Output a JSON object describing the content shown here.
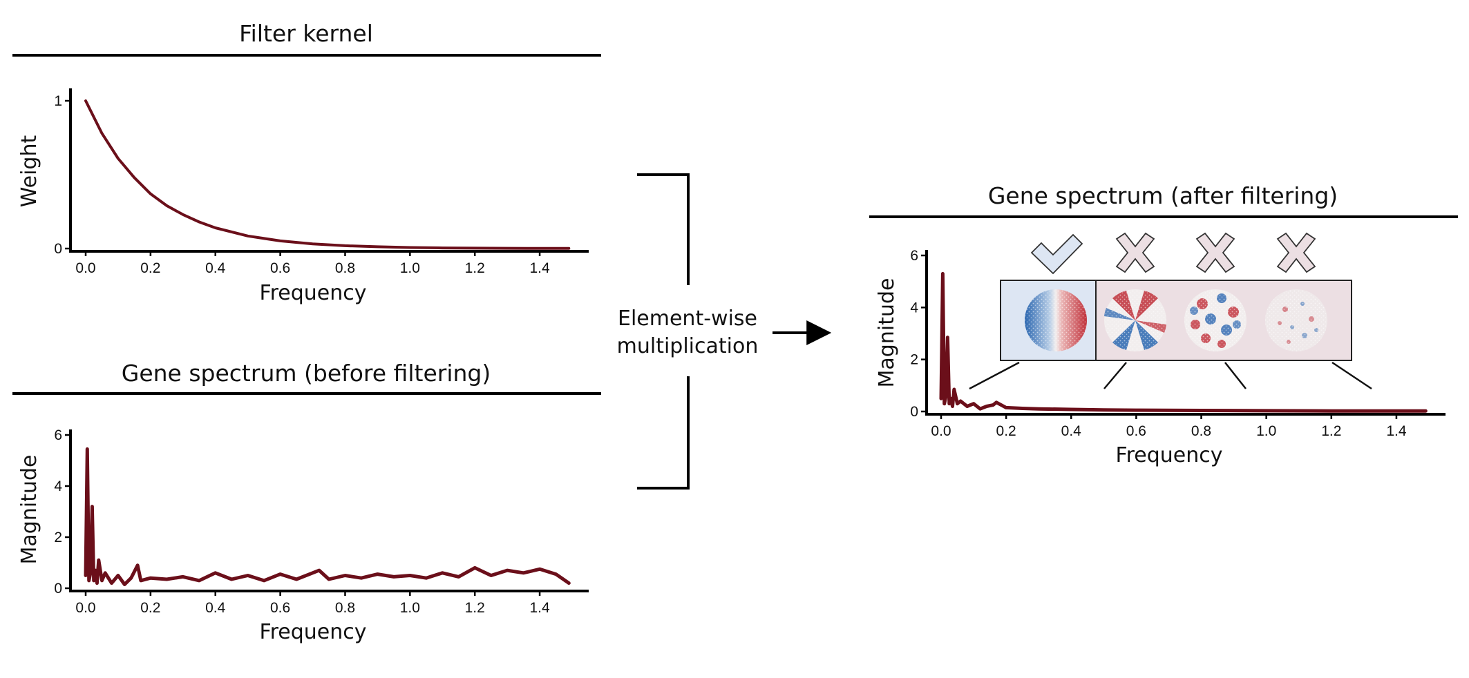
{
  "colors": {
    "line": "#6b0f1a",
    "axis": "#000000",
    "selected_fill": "#dde6f3",
    "rejected_fill": "#ecdfe3",
    "red": "#c0303a",
    "blue": "#2c67b0"
  },
  "chart_data": [
    {
      "type": "line",
      "title": "Filter kernel",
      "xlabel": "Frequency",
      "ylabel": "Weight",
      "xlim": [
        0,
        1.5
      ],
      "ylim": [
        0,
        1
      ],
      "xticks": [
        "0.0",
        "0.2",
        "0.4",
        "0.6",
        "0.8",
        "1.0",
        "1.2",
        "1.4"
      ],
      "yticks": [
        "0",
        "1"
      ],
      "series": [
        {
          "x": [
            0,
            0.05,
            0.1,
            0.15,
            0.2,
            0.25,
            0.3,
            0.35,
            0.4,
            0.5,
            0.6,
            0.7,
            0.8,
            0.9,
            1.0,
            1.1,
            1.2,
            1.3,
            1.4,
            1.49
          ],
          "values": [
            1.0,
            0.78,
            0.61,
            0.48,
            0.37,
            0.29,
            0.23,
            0.18,
            0.14,
            0.085,
            0.052,
            0.032,
            0.019,
            0.012,
            0.007,
            0.004,
            0.003,
            0.002,
            0.001,
            0.001
          ]
        }
      ]
    },
    {
      "type": "line",
      "title": "Gene spectrum (before filtering)",
      "xlabel": "Frequency",
      "ylabel": "Magnitude",
      "xlim": [
        0,
        1.5
      ],
      "ylim": [
        0,
        6
      ],
      "xticks": [
        "0.0",
        "0.2",
        "0.4",
        "0.6",
        "0.8",
        "1.0",
        "1.2",
        "1.4"
      ],
      "yticks": [
        "0",
        "2",
        "4",
        "6"
      ],
      "series": [
        {
          "x": [
            0.0,
            0.005,
            0.01,
            0.015,
            0.02,
            0.025,
            0.03,
            0.035,
            0.04,
            0.05,
            0.06,
            0.08,
            0.1,
            0.12,
            0.14,
            0.16,
            0.17,
            0.2,
            0.25,
            0.3,
            0.35,
            0.4,
            0.45,
            0.5,
            0.55,
            0.6,
            0.65,
            0.7,
            0.72,
            0.75,
            0.8,
            0.85,
            0.9,
            0.95,
            1.0,
            1.05,
            1.1,
            1.15,
            1.2,
            1.25,
            1.3,
            1.35,
            1.4,
            1.45,
            1.49
          ],
          "values": [
            0.5,
            5.45,
            0.3,
            0.6,
            3.2,
            0.3,
            0.7,
            0.2,
            1.1,
            0.3,
            0.6,
            0.2,
            0.5,
            0.15,
            0.4,
            0.9,
            0.3,
            0.4,
            0.35,
            0.45,
            0.3,
            0.6,
            0.35,
            0.5,
            0.3,
            0.55,
            0.35,
            0.6,
            0.7,
            0.35,
            0.5,
            0.4,
            0.55,
            0.45,
            0.5,
            0.4,
            0.6,
            0.45,
            0.8,
            0.5,
            0.7,
            0.6,
            0.75,
            0.55,
            0.2
          ]
        }
      ]
    },
    {
      "type": "line",
      "title": "Gene spectrum (after filtering)",
      "xlabel": "Frequency",
      "ylabel": "Magnitude",
      "xlim": [
        0,
        1.5
      ],
      "ylim": [
        0,
        6
      ],
      "xticks": [
        "0.0",
        "0.2",
        "0.4",
        "0.6",
        "0.8",
        "1.0",
        "1.2",
        "1.4"
      ],
      "yticks": [
        "0",
        "2",
        "4",
        "6"
      ],
      "series": [
        {
          "x": [
            0.0,
            0.005,
            0.01,
            0.015,
            0.02,
            0.025,
            0.03,
            0.035,
            0.04,
            0.05,
            0.06,
            0.08,
            0.1,
            0.12,
            0.14,
            0.16,
            0.17,
            0.2,
            0.25,
            0.3,
            0.4,
            0.5,
            0.6,
            0.8,
            1.0,
            1.2,
            1.4,
            1.49
          ],
          "values": [
            0.5,
            5.3,
            0.3,
            0.6,
            2.85,
            0.3,
            0.5,
            0.2,
            0.85,
            0.3,
            0.4,
            0.2,
            0.3,
            0.1,
            0.2,
            0.25,
            0.35,
            0.15,
            0.12,
            0.1,
            0.08,
            0.06,
            0.05,
            0.04,
            0.03,
            0.02,
            0.02,
            0.02
          ]
        }
      ]
    }
  ],
  "operation": {
    "line1": "Element-wise",
    "line2": "multiplication"
  },
  "inset": {
    "markers": [
      {
        "icon": "checkmark-icon",
        "status": "selected"
      },
      {
        "icon": "cross-icon",
        "status": "rejected"
      },
      {
        "icon": "cross-icon",
        "status": "rejected"
      },
      {
        "icon": "cross-icon",
        "status": "rejected"
      }
    ]
  }
}
